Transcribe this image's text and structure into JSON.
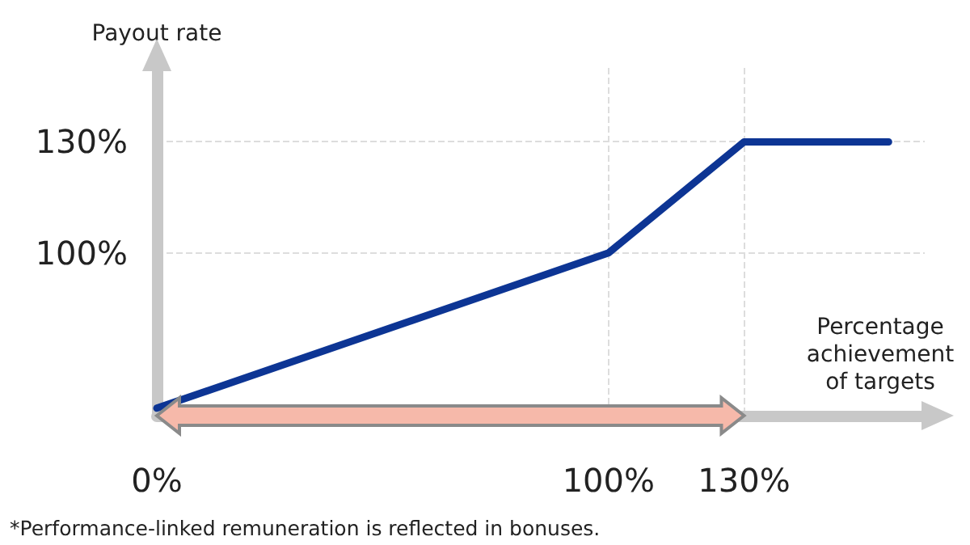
{
  "chart_data": {
    "type": "line",
    "ylabel": "Payout rate",
    "xlabel": "Percentage\nachievement\nof targets",
    "x": [
      0,
      100,
      130,
      162
    ],
    "series": [
      {
        "color": "#0d3594",
        "values": [
          58,
          100,
          130,
          130
        ]
      }
    ],
    "xlim": [
      0,
      170
    ],
    "xticks": [
      {
        "value": 0,
        "label": "0%"
      },
      {
        "value": 100,
        "label": "100%"
      },
      {
        "value": 130,
        "label": "130%"
      }
    ],
    "ylim": [
      56,
      150
    ],
    "yticks": [
      {
        "value": 100,
        "label": "100%"
      },
      {
        "value": 130,
        "label": "130%"
      }
    ],
    "grid": true,
    "marker": "none",
    "line_style": "solid",
    "annotations": [
      "*Performance-linked remuneration is reflected in bonuses."
    ]
  }
}
